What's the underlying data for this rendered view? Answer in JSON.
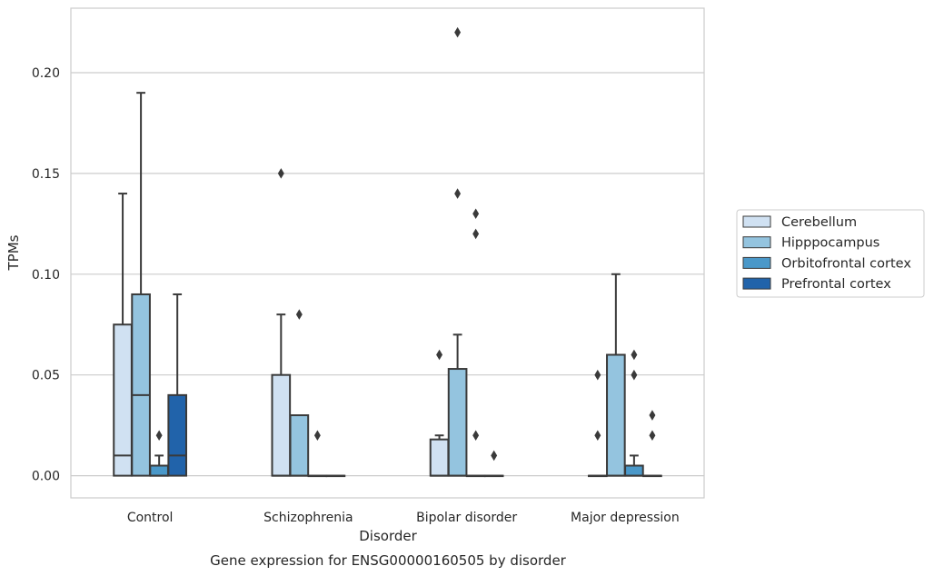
{
  "chart_data": {
    "type": "box",
    "xlabel": "Disorder",
    "ylabel": "TPMs",
    "caption": "Gene expression for ENSG00000160505 by disorder",
    "ylim": [
      -0.011,
      0.232
    ],
    "yticks": [
      0.0,
      0.05,
      0.1,
      0.15,
      0.2
    ],
    "ytick_labels": [
      "0.00",
      "0.05",
      "0.10",
      "0.15",
      "0.20"
    ],
    "grid": "horizontal",
    "legend_position": "right",
    "categories": [
      "Control",
      "Schizophrenia",
      "Bipolar disorder",
      "Major depression"
    ],
    "series": [
      {
        "name": "Cerebellum",
        "color": "#d0e1f2",
        "boxes": [
          {
            "q1": 0.0,
            "median": 0.01,
            "q3": 0.075,
            "whislo": 0.0,
            "whishi": 0.14,
            "fliers": []
          },
          {
            "q1": 0.0,
            "median": 0.0,
            "q3": 0.05,
            "whislo": 0.0,
            "whishi": 0.08,
            "fliers": [
              0.15
            ]
          },
          {
            "q1": 0.0,
            "median": 0.0,
            "q3": 0.018,
            "whislo": 0.0,
            "whishi": 0.02,
            "fliers": [
              0.06
            ]
          },
          {
            "q1": 0.0,
            "median": 0.0,
            "q3": 0.0,
            "whislo": 0.0,
            "whishi": 0.0,
            "fliers": [
              0.02,
              0.05
            ]
          }
        ]
      },
      {
        "name": "Hipppocampus",
        "color": "#94c4df",
        "boxes": [
          {
            "q1": 0.0,
            "median": 0.04,
            "q3": 0.09,
            "whislo": 0.0,
            "whishi": 0.19,
            "fliers": []
          },
          {
            "q1": 0.0,
            "median": 0.0,
            "q3": 0.03,
            "whislo": 0.0,
            "whishi": 0.03,
            "fliers": [
              0.08
            ]
          },
          {
            "q1": 0.0,
            "median": 0.0,
            "q3": 0.053,
            "whislo": 0.0,
            "whishi": 0.07,
            "fliers": [
              0.14,
              0.22
            ]
          },
          {
            "q1": 0.0,
            "median": 0.0,
            "q3": 0.06,
            "whislo": 0.0,
            "whishi": 0.1,
            "fliers": []
          }
        ]
      },
      {
        "name": "Orbitofrontal cortex",
        "color": "#4a98c9",
        "boxes": [
          {
            "q1": 0.0,
            "median": 0.0,
            "q3": 0.005,
            "whislo": 0.0,
            "whishi": 0.01,
            "fliers": [
              0.02
            ]
          },
          {
            "q1": 0.0,
            "median": 0.0,
            "q3": 0.0,
            "whislo": 0.0,
            "whishi": 0.0,
            "fliers": [
              0.02
            ]
          },
          {
            "q1": 0.0,
            "median": 0.0,
            "q3": 0.0,
            "whislo": 0.0,
            "whishi": 0.0,
            "fliers": [
              0.02,
              0.12,
              0.13
            ]
          },
          {
            "q1": 0.0,
            "median": 0.0,
            "q3": 0.005,
            "whislo": 0.0,
            "whishi": 0.01,
            "fliers": [
              0.05,
              0.06
            ]
          }
        ]
      },
      {
        "name": "Prefrontal cortex",
        "color": "#2163aa",
        "boxes": [
          {
            "q1": 0.0,
            "median": 0.01,
            "q3": 0.04,
            "whislo": 0.0,
            "whishi": 0.09,
            "fliers": []
          },
          {
            "q1": 0.0,
            "median": 0.0,
            "q3": 0.0,
            "whislo": 0.0,
            "whishi": 0.0,
            "fliers": []
          },
          {
            "q1": 0.0,
            "median": 0.0,
            "q3": 0.0,
            "whislo": 0.0,
            "whishi": 0.0,
            "fliers": [
              0.01
            ]
          },
          {
            "q1": 0.0,
            "median": 0.0,
            "q3": 0.0,
            "whislo": 0.0,
            "whishi": 0.0,
            "fliers": [
              0.02,
              0.03
            ]
          }
        ]
      }
    ]
  }
}
